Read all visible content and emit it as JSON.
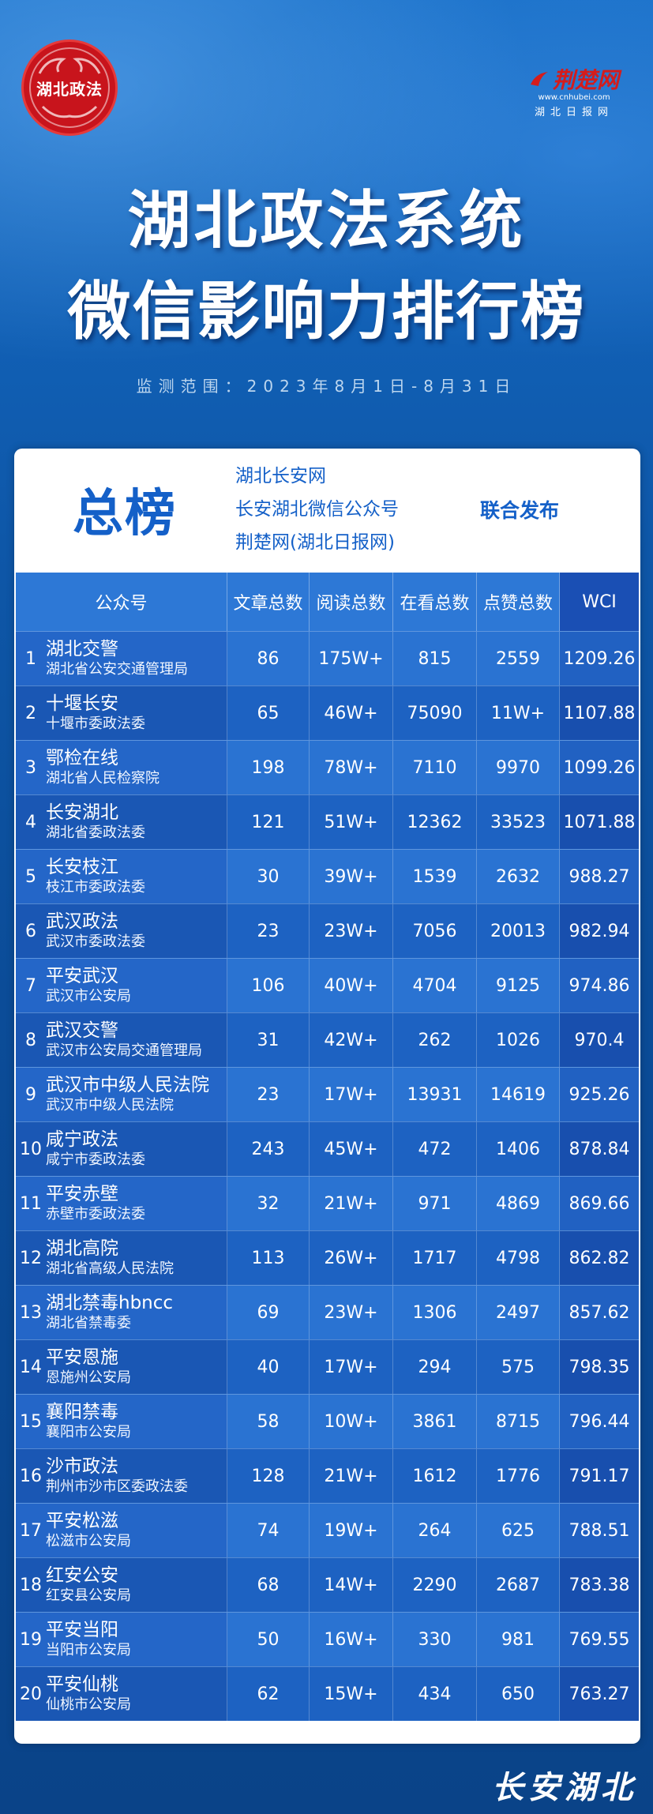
{
  "seal": {
    "text": "湖北政法"
  },
  "brand": {
    "name": "荆楚网",
    "url": "www.cnhubei.com",
    "sub": "湖北日报网"
  },
  "title": {
    "line1": "湖北政法系统",
    "line2": "微信影响力排行榜"
  },
  "period": "监测范围：2023年8月1日-8月31日",
  "card": {
    "heading": "总榜",
    "publishers": [
      "湖北长安网",
      "长安湖北微信公众号",
      "荆楚网(湖北日报网)"
    ],
    "joint": "联合发布"
  },
  "table": {
    "headers": [
      "公众号",
      "文章总数",
      "阅读总数",
      "在看总数",
      "点赞总数",
      "WCI"
    ],
    "rows": [
      {
        "rank": "1",
        "account": "湖北交警",
        "org": "湖北省公安交通管理局",
        "articles": "86",
        "reads": "175W+",
        "looks": "815",
        "likes": "2559",
        "wci": "1209.26"
      },
      {
        "rank": "2",
        "account": "十堰长安",
        "org": "十堰市委政法委",
        "articles": "65",
        "reads": "46W+",
        "looks": "75090",
        "likes": "11W+",
        "wci": "1107.88"
      },
      {
        "rank": "3",
        "account": "鄂检在线",
        "org": "湖北省人民检察院",
        "articles": "198",
        "reads": "78W+",
        "looks": "7110",
        "likes": "9970",
        "wci": "1099.26"
      },
      {
        "rank": "4",
        "account": "长安湖北",
        "org": "湖北省委政法委",
        "articles": "121",
        "reads": "51W+",
        "looks": "12362",
        "likes": "33523",
        "wci": "1071.88"
      },
      {
        "rank": "5",
        "account": "长安枝江",
        "org": "枝江市委政法委",
        "articles": "30",
        "reads": "39W+",
        "looks": "1539",
        "likes": "2632",
        "wci": "988.27"
      },
      {
        "rank": "6",
        "account": "武汉政法",
        "org": "武汉市委政法委",
        "articles": "23",
        "reads": "23W+",
        "looks": "7056",
        "likes": "20013",
        "wci": "982.94"
      },
      {
        "rank": "7",
        "account": "平安武汉",
        "org": "武汉市公安局",
        "articles": "106",
        "reads": "40W+",
        "looks": "4704",
        "likes": "9125",
        "wci": "974.86"
      },
      {
        "rank": "8",
        "account": "武汉交警",
        "org": "武汉市公安局交通管理局",
        "articles": "31",
        "reads": "42W+",
        "looks": "262",
        "likes": "1026",
        "wci": "970.4"
      },
      {
        "rank": "9",
        "account": "武汉市中级人民法院",
        "org": "武汉市中级人民法院",
        "articles": "23",
        "reads": "17W+",
        "looks": "13931",
        "likes": "14619",
        "wci": "925.26"
      },
      {
        "rank": "10",
        "account": "咸宁政法",
        "org": "咸宁市委政法委",
        "articles": "243",
        "reads": "45W+",
        "looks": "472",
        "likes": "1406",
        "wci": "878.84"
      },
      {
        "rank": "11",
        "account": "平安赤壁",
        "org": "赤壁市委政法委",
        "articles": "32",
        "reads": "21W+",
        "looks": "971",
        "likes": "4869",
        "wci": "869.66"
      },
      {
        "rank": "12",
        "account": "湖北高院",
        "org": "湖北省高级人民法院",
        "articles": "113",
        "reads": "26W+",
        "looks": "1717",
        "likes": "4798",
        "wci": "862.82"
      },
      {
        "rank": "13",
        "account": "湖北禁毒hbncc",
        "org": "湖北省禁毒委",
        "articles": "69",
        "reads": "23W+",
        "looks": "1306",
        "likes": "2497",
        "wci": "857.62"
      },
      {
        "rank": "14",
        "account": "平安恩施",
        "org": "恩施州公安局",
        "articles": "40",
        "reads": "17W+",
        "looks": "294",
        "likes": "575",
        "wci": "798.35"
      },
      {
        "rank": "15",
        "account": "襄阳禁毒",
        "org": "襄阳市公安局",
        "articles": "58",
        "reads": "10W+",
        "looks": "3861",
        "likes": "8715",
        "wci": "796.44"
      },
      {
        "rank": "16",
        "account": "沙市政法",
        "org": "荆州市沙市区委政法委",
        "articles": "128",
        "reads": "21W+",
        "looks": "1612",
        "likes": "1776",
        "wci": "791.17"
      },
      {
        "rank": "17",
        "account": "平安松滋",
        "org": "松滋市公安局",
        "articles": "74",
        "reads": "19W+",
        "looks": "264",
        "likes": "625",
        "wci": "788.51"
      },
      {
        "rank": "18",
        "account": "红安公安",
        "org": "红安县公安局",
        "articles": "68",
        "reads": "14W+",
        "looks": "2290",
        "likes": "2687",
        "wci": "783.38"
      },
      {
        "rank": "19",
        "account": "平安当阳",
        "org": "当阳市公安局",
        "articles": "50",
        "reads": "16W+",
        "looks": "330",
        "likes": "981",
        "wci": "769.55"
      },
      {
        "rank": "20",
        "account": "平安仙桃",
        "org": "仙桃市公安局",
        "articles": "62",
        "reads": "15W+",
        "looks": "434",
        "likes": "650",
        "wci": "763.27"
      }
    ]
  },
  "footer": {
    "logo": "长安湖北"
  }
}
